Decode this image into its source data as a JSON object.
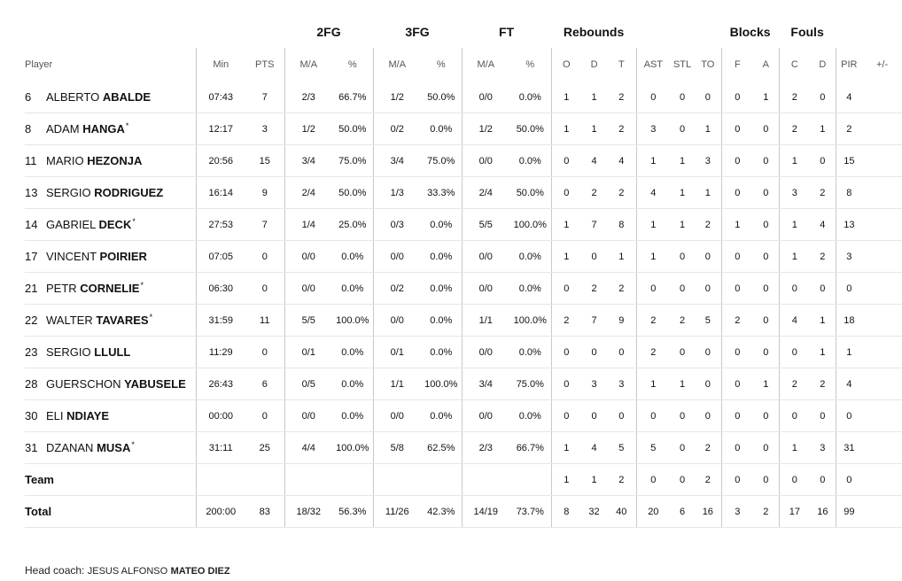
{
  "groups": {
    "fg2": "2FG",
    "fg3": "3FG",
    "ft": "FT",
    "rebounds": "Rebounds",
    "blocks": "Blocks",
    "fouls": "Fouls"
  },
  "columns": [
    "Player",
    "Min",
    "PTS",
    "M/A",
    "%",
    "M/A",
    "%",
    "M/A",
    "%",
    "O",
    "D",
    "T",
    "AST",
    "STL",
    "TO",
    "F",
    "A",
    "C",
    "D",
    "PIR",
    "+/-"
  ],
  "players": [
    {
      "num": "6",
      "first": "ALBERTO",
      "last": "ABALDE",
      "star": "",
      "stats": [
        "07:43",
        "7",
        "2/3",
        "66.7%",
        "1/2",
        "50.0%",
        "0/0",
        "0.0%",
        "1",
        "1",
        "2",
        "0",
        "0",
        "0",
        "0",
        "1",
        "2",
        "0",
        "4",
        ""
      ]
    },
    {
      "num": "8",
      "first": "ADAM",
      "last": "HANGA",
      "star": "*",
      "stats": [
        "12:17",
        "3",
        "1/2",
        "50.0%",
        "0/2",
        "0.0%",
        "1/2",
        "50.0%",
        "1",
        "1",
        "2",
        "3",
        "0",
        "1",
        "0",
        "0",
        "2",
        "1",
        "2",
        ""
      ]
    },
    {
      "num": "11",
      "first": "MARIO",
      "last": "HEZONJA",
      "star": "",
      "stats": [
        "20:56",
        "15",
        "3/4",
        "75.0%",
        "3/4",
        "75.0%",
        "0/0",
        "0.0%",
        "0",
        "4",
        "4",
        "1",
        "1",
        "3",
        "0",
        "0",
        "1",
        "0",
        "15",
        ""
      ]
    },
    {
      "num": "13",
      "first": "SERGIO",
      "last": "RODRIGUEZ",
      "star": "",
      "stats": [
        "16:14",
        "9",
        "2/4",
        "50.0%",
        "1/3",
        "33.3%",
        "2/4",
        "50.0%",
        "0",
        "2",
        "2",
        "4",
        "1",
        "1",
        "0",
        "0",
        "3",
        "2",
        "8",
        ""
      ]
    },
    {
      "num": "14",
      "first": "GABRIEL",
      "last": "DECK",
      "star": "*",
      "stats": [
        "27:53",
        "7",
        "1/4",
        "25.0%",
        "0/3",
        "0.0%",
        "5/5",
        "100.0%",
        "1",
        "7",
        "8",
        "1",
        "1",
        "2",
        "1",
        "0",
        "1",
        "4",
        "13",
        ""
      ]
    },
    {
      "num": "17",
      "first": "VINCENT",
      "last": "POIRIER",
      "star": "",
      "stats": [
        "07:05",
        "0",
        "0/0",
        "0.0%",
        "0/0",
        "0.0%",
        "0/0",
        "0.0%",
        "1",
        "0",
        "1",
        "1",
        "0",
        "0",
        "0",
        "0",
        "1",
        "2",
        "3",
        ""
      ]
    },
    {
      "num": "21",
      "first": "PETR",
      "last": "CORNELIE",
      "star": "*",
      "stats": [
        "06:30",
        "0",
        "0/0",
        "0.0%",
        "0/2",
        "0.0%",
        "0/0",
        "0.0%",
        "0",
        "2",
        "2",
        "0",
        "0",
        "0",
        "0",
        "0",
        "0",
        "0",
        "0",
        ""
      ]
    },
    {
      "num": "22",
      "first": "WALTER",
      "last": "TAVARES",
      "star": "*",
      "stats": [
        "31:59",
        "11",
        "5/5",
        "100.0%",
        "0/0",
        "0.0%",
        "1/1",
        "100.0%",
        "2",
        "7",
        "9",
        "2",
        "2",
        "5",
        "2",
        "0",
        "4",
        "1",
        "18",
        ""
      ]
    },
    {
      "num": "23",
      "first": "SERGIO",
      "last": "LLULL",
      "star": "",
      "stats": [
        "11:29",
        "0",
        "0/1",
        "0.0%",
        "0/1",
        "0.0%",
        "0/0",
        "0.0%",
        "0",
        "0",
        "0",
        "2",
        "0",
        "0",
        "0",
        "0",
        "0",
        "1",
        "1",
        ""
      ]
    },
    {
      "num": "28",
      "first": "GUERSCHON",
      "last": "YABUSELE",
      "star": "",
      "stats": [
        "26:43",
        "6",
        "0/5",
        "0.0%",
        "1/1",
        "100.0%",
        "3/4",
        "75.0%",
        "0",
        "3",
        "3",
        "1",
        "1",
        "0",
        "0",
        "1",
        "2",
        "2",
        "4",
        ""
      ]
    },
    {
      "num": "30",
      "first": "ELI",
      "last": "NDIAYE",
      "star": "",
      "stats": [
        "00:00",
        "0",
        "0/0",
        "0.0%",
        "0/0",
        "0.0%",
        "0/0",
        "0.0%",
        "0",
        "0",
        "0",
        "0",
        "0",
        "0",
        "0",
        "0",
        "0",
        "0",
        "0",
        ""
      ]
    },
    {
      "num": "31",
      "first": "DZANAN",
      "last": "MUSA",
      "star": "*",
      "stats": [
        "31:11",
        "25",
        "4/4",
        "100.0%",
        "5/8",
        "62.5%",
        "2/3",
        "66.7%",
        "1",
        "4",
        "5",
        "5",
        "0",
        "2",
        "0",
        "0",
        "1",
        "3",
        "31",
        ""
      ]
    }
  ],
  "team": {
    "label": "Team",
    "stats": [
      "",
      "",
      "",
      "",
      "",
      "",
      "",
      "",
      "1",
      "1",
      "2",
      "0",
      "0",
      "2",
      "0",
      "0",
      "0",
      "0",
      "0",
      ""
    ]
  },
  "total": {
    "label": "Total",
    "stats": [
      "200:00",
      "83",
      "18/32",
      "56.3%",
      "11/26",
      "42.3%",
      "14/19",
      "73.7%",
      "8",
      "32",
      "40",
      "20",
      "6",
      "16",
      "3",
      "2",
      "17",
      "16",
      "99",
      ""
    ]
  },
  "coach": {
    "label": "Head coach:",
    "first": "JESUS ALFONSO",
    "last": "MATEO DIEZ"
  }
}
